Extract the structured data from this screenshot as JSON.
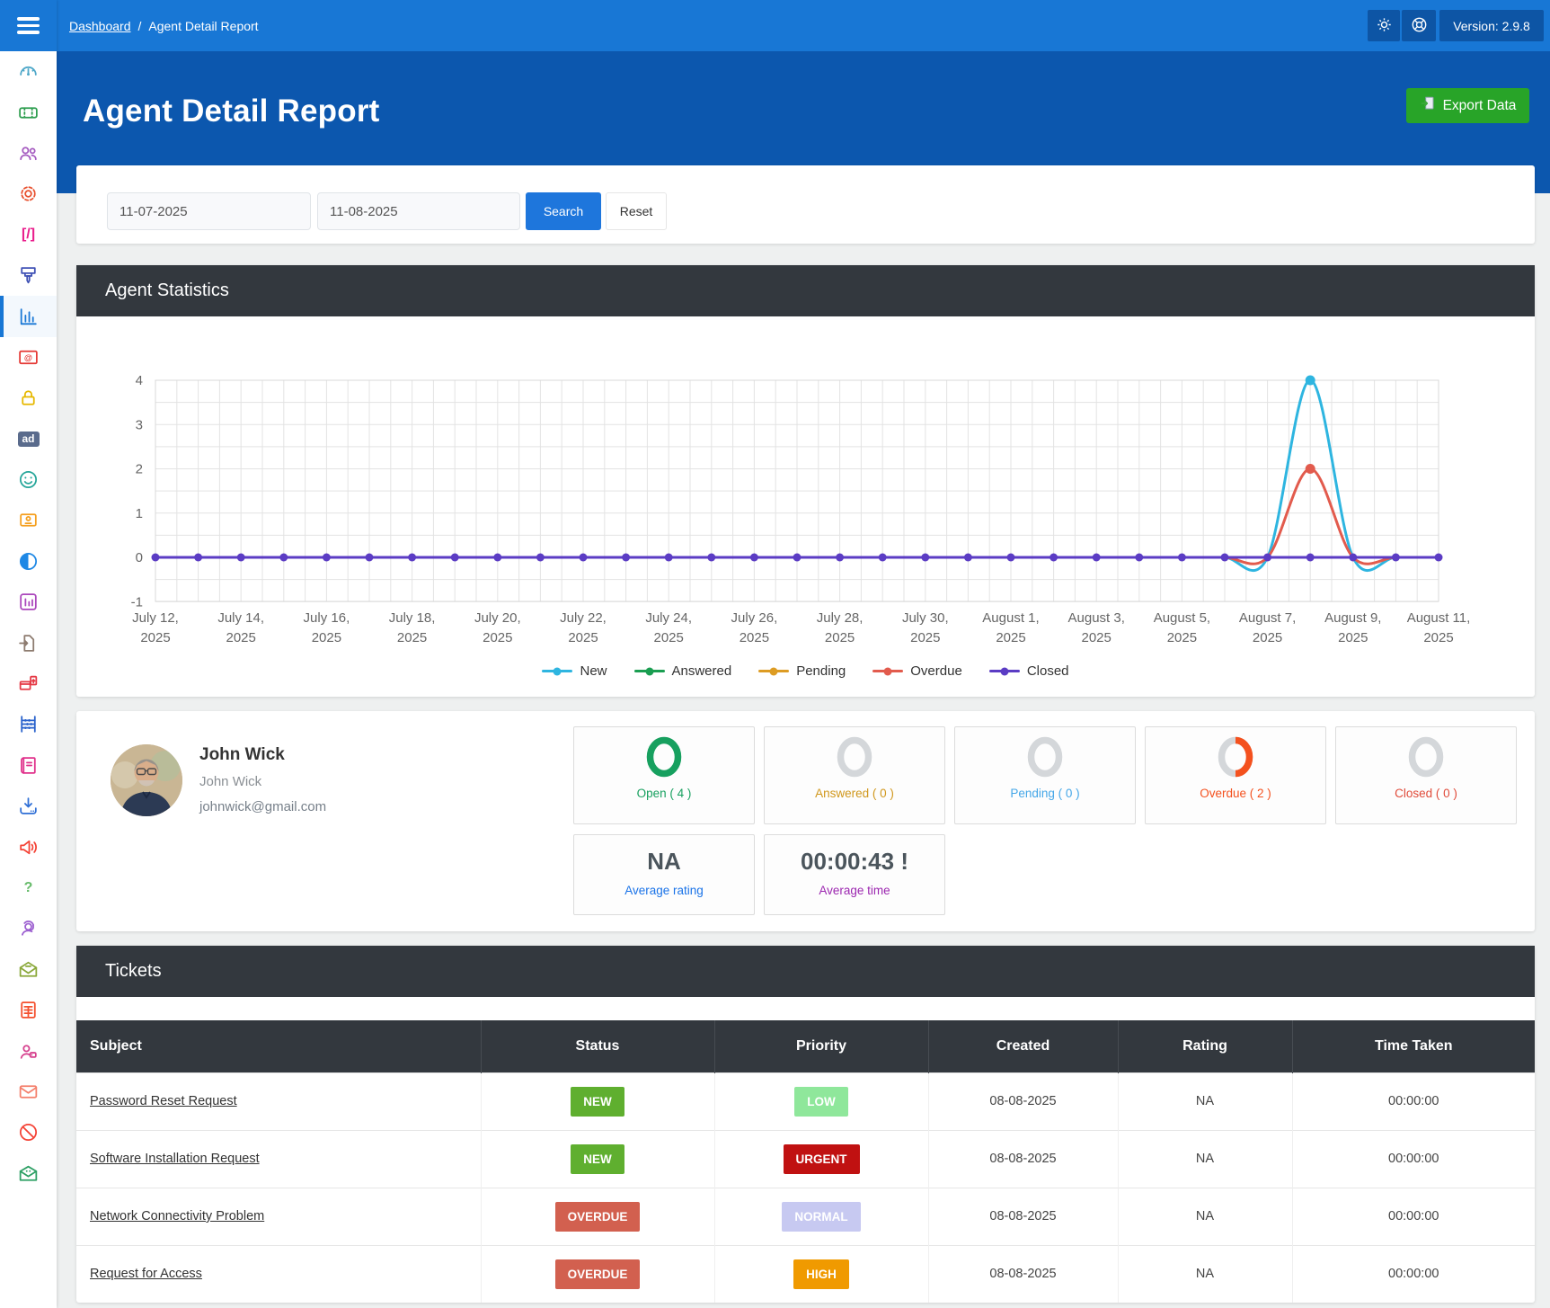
{
  "theme": {
    "topbar_blue": "#1877d5",
    "hero_blue": "#0c57ae",
    "topbar_button_blue": "#0d55a5",
    "export_green": "#28a428",
    "panel_dark": "#33383e",
    "search_blue": "#1e76dc",
    "donut_gray": "#d4d7da",
    "donut_green": "#17a05f",
    "donut_orange": "#f4511e"
  },
  "topbar": {
    "breadcrumb": {
      "items": [
        "Dashboard",
        "Agent Detail Report"
      ],
      "separator": "/"
    },
    "version_label": "Version: 2.9.8",
    "icons": [
      "gear-icon",
      "life-ring-icon"
    ]
  },
  "page_header": {
    "title": "Agent Detail Report",
    "export_label": "Export Data"
  },
  "filters": {
    "start_date": "11-07-2025",
    "end_date": "11-08-2025",
    "search_label": "Search",
    "reset_label": "Reset"
  },
  "panels": {
    "statistics_title": "Agent Statistics",
    "tickets_title": "Tickets"
  },
  "chart_data": {
    "type": "line",
    "dates": [
      "July 12, 2025",
      "July 13, 2025",
      "July 14, 2025",
      "July 15, 2025",
      "July 16, 2025",
      "July 17, 2025",
      "July 18, 2025",
      "July 19, 2025",
      "July 20, 2025",
      "July 21, 2025",
      "July 22, 2025",
      "July 23, 2025",
      "July 24, 2025",
      "July 25, 2025",
      "July 26, 2025",
      "July 27, 2025",
      "July 28, 2025",
      "July 29, 2025",
      "July 30, 2025",
      "July 31, 2025",
      "August 1, 2025",
      "August 2, 2025",
      "August 3, 2025",
      "August 4, 2025",
      "August 5, 2025",
      "August 6, 2025",
      "August 7, 2025",
      "August 8, 2025",
      "August 9, 2025",
      "August 10, 2025",
      "August 11, 2025"
    ],
    "tick_every": 2,
    "y_ticks": [
      4,
      3,
      2,
      1,
      0,
      -1
    ],
    "ylim": [
      -1,
      4
    ],
    "grid": true,
    "legend_position": "bottom",
    "series": [
      {
        "name": "New",
        "color": "#2eb5e0",
        "values": [
          0,
          0,
          0,
          0,
          0,
          0,
          0,
          0,
          0,
          0,
          0,
          0,
          0,
          0,
          0,
          0,
          0,
          0,
          0,
          0,
          0,
          0,
          0,
          0,
          0,
          0,
          0,
          4,
          0,
          0,
          0
        ]
      },
      {
        "name": "Answered",
        "color": "#1a9e51",
        "values": [
          0,
          0,
          0,
          0,
          0,
          0,
          0,
          0,
          0,
          0,
          0,
          0,
          0,
          0,
          0,
          0,
          0,
          0,
          0,
          0,
          0,
          0,
          0,
          0,
          0,
          0,
          0,
          0,
          0,
          0,
          0
        ]
      },
      {
        "name": "Pending",
        "color": "#dd9c23",
        "values": [
          0,
          0,
          0,
          0,
          0,
          0,
          0,
          0,
          0,
          0,
          0,
          0,
          0,
          0,
          0,
          0,
          0,
          0,
          0,
          0,
          0,
          0,
          0,
          0,
          0,
          0,
          0,
          0,
          0,
          0,
          0
        ]
      },
      {
        "name": "Overdue",
        "color": "#e25b4d",
        "values": [
          0,
          0,
          0,
          0,
          0,
          0,
          0,
          0,
          0,
          0,
          0,
          0,
          0,
          0,
          0,
          0,
          0,
          0,
          0,
          0,
          0,
          0,
          0,
          0,
          0,
          0,
          0,
          2,
          0,
          0,
          0
        ]
      },
      {
        "name": "Closed",
        "color": "#5b3cc4",
        "values": [
          0,
          0,
          0,
          0,
          0,
          0,
          0,
          0,
          0,
          0,
          0,
          0,
          0,
          0,
          0,
          0,
          0,
          0,
          0,
          0,
          0,
          0,
          0,
          0,
          0,
          0,
          0,
          0,
          0,
          0,
          0
        ]
      }
    ]
  },
  "agent": {
    "name": "John Wick",
    "display_name": "John Wick",
    "email": "johnwick@gmail.com"
  },
  "summary": {
    "cards": [
      {
        "label": "Open",
        "count": 4,
        "fraction": 1,
        "ring_color": "#17a05f",
        "label_color": "#17a05f"
      },
      {
        "label": "Answered",
        "count": 0,
        "fraction": 0,
        "ring_color": "#d4d7da",
        "label_color": "#d0971c"
      },
      {
        "label": "Pending",
        "count": 0,
        "fraction": 0,
        "ring_color": "#d4d7da",
        "label_color": "#45a7e8"
      },
      {
        "label": "Overdue",
        "count": 2,
        "fraction": 0.5,
        "ring_color": "#f4511e",
        "label_color": "#f4511e"
      },
      {
        "label": "Closed",
        "count": 0,
        "fraction": 0,
        "ring_color": "#d4d7da",
        "label_color": "#e04b3a"
      }
    ],
    "average_rating": {
      "value": "NA",
      "label": "Average rating",
      "label_color": "#1a73e8"
    },
    "average_time": {
      "value": "00:00:43 !",
      "label": "Average time",
      "label_color": "#9c27b0"
    }
  },
  "tickets_table": {
    "columns": [
      "Subject",
      "Status",
      "Priority",
      "Created",
      "Rating",
      "Time Taken"
    ],
    "rows": [
      {
        "subject": "Password Reset Request",
        "status": "NEW",
        "status_color": "#5faf2f",
        "priority": "LOW",
        "priority_color": "#8fe79b",
        "created": "08-08-2025",
        "rating": "NA",
        "time_taken": "00:00:00"
      },
      {
        "subject": "Software Installation Request",
        "status": "NEW",
        "status_color": "#5faf2f",
        "priority": "URGENT",
        "priority_color": "#c01111",
        "created": "08-08-2025",
        "rating": "NA",
        "time_taken": "00:00:00"
      },
      {
        "subject": "Network Connectivity Problem",
        "status": "OVERDUE",
        "status_color": "#d2604f",
        "priority": "NORMAL",
        "priority_color": "#c7c9f1",
        "created": "08-08-2025",
        "rating": "NA",
        "time_taken": "00:00:00"
      },
      {
        "subject": "Request for Access",
        "status": "OVERDUE",
        "status_color": "#d2604f",
        "priority": "HIGH",
        "priority_color": "#f09a00",
        "created": "08-08-2025",
        "rating": "NA",
        "time_taken": "00:00:00"
      }
    ]
  },
  "sidebar": {
    "items": [
      {
        "name": "dashboard",
        "color": "#4fa8c9"
      },
      {
        "name": "tickets",
        "color": "#2e9e4f"
      },
      {
        "name": "users",
        "color": "#a55bc0"
      },
      {
        "name": "settings",
        "color": "#e8502e"
      },
      {
        "name": "shortcodes",
        "color": "#e91e8c",
        "glyph": "[/]"
      },
      {
        "name": "theme",
        "color": "#3f51b5"
      },
      {
        "name": "reports",
        "color": "#1877d5",
        "active": true
      },
      {
        "name": "email-templates",
        "color": "#e53935"
      },
      {
        "name": "security",
        "color": "#e6b800"
      },
      {
        "name": "ads",
        "color": "#5a6b8c",
        "glyph": "ad",
        "badge": true
      },
      {
        "name": "feedback",
        "color": "#26a69a"
      },
      {
        "name": "id-card",
        "color": "#f59f1e"
      },
      {
        "name": "contrast",
        "color": "#1e88e5"
      },
      {
        "name": "analytics",
        "color": "#ab47bc"
      },
      {
        "name": "import",
        "color": "#8d7b6f"
      },
      {
        "name": "archive",
        "color": "#e53945"
      },
      {
        "name": "abacus",
        "color": "#2962cc"
      },
      {
        "name": "knowledge-base",
        "color": "#e0318b"
      },
      {
        "name": "downloads",
        "color": "#2f6fd6"
      },
      {
        "name": "announcements",
        "color": "#f44336"
      },
      {
        "name": "faq",
        "color": "#66bb6a",
        "glyph": "?"
      },
      {
        "name": "support",
        "color": "#9c5fd0"
      },
      {
        "name": "inbox",
        "color": "#8aa83a"
      },
      {
        "name": "invoices",
        "color": "#f4502e"
      },
      {
        "name": "user-tags",
        "color": "#d6418e"
      },
      {
        "name": "mail",
        "color": "#f47f6b"
      },
      {
        "name": "blocked",
        "color": "#f44336"
      },
      {
        "name": "mail-cc",
        "color": "#2ea065"
      }
    ]
  }
}
